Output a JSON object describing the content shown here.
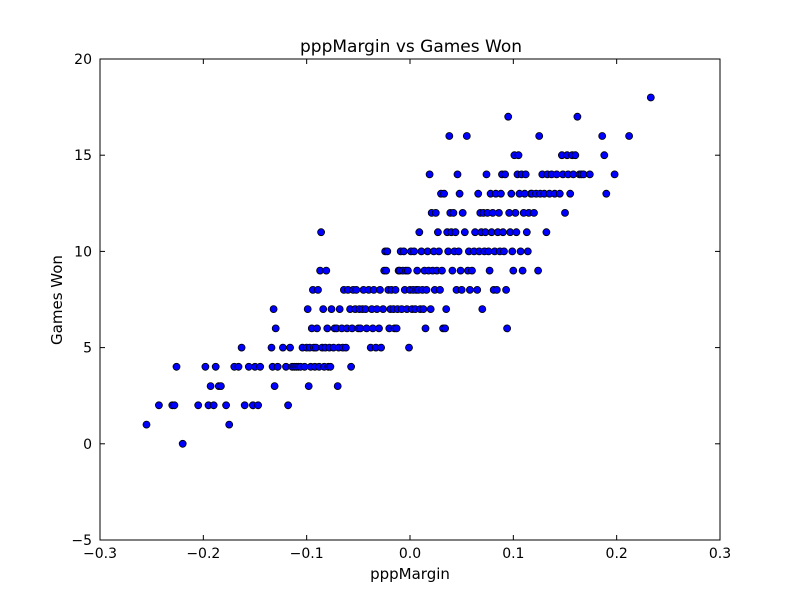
{
  "chart_data": {
    "type": "scatter",
    "title": "pppMargin vs Games Won",
    "xlabel": "pppMargin",
    "ylabel": "Games Won",
    "xlim": [
      -0.3,
      0.3
    ],
    "ylim": [
      -5,
      20
    ],
    "xticks": [
      -0.3,
      -0.2,
      -0.1,
      0.0,
      0.1,
      0.2,
      0.3
    ],
    "xtick_labels": [
      "−0.3",
      "−0.2",
      "−0.1",
      "0.0",
      "0.1",
      "0.2",
      "0.3"
    ],
    "yticks": [
      -5,
      0,
      5,
      10,
      15,
      20
    ],
    "ytick_labels": [
      "−5",
      "0",
      "5",
      "10",
      "15",
      "20"
    ],
    "grid": false,
    "marker_color": "#0000ff",
    "points": [
      [
        -0.255,
        1
      ],
      [
        -0.243,
        2
      ],
      [
        -0.23,
        2
      ],
      [
        -0.228,
        2
      ],
      [
        -0.226,
        4
      ],
      [
        -0.22,
        0
      ],
      [
        -0.205,
        2
      ],
      [
        -0.198,
        4
      ],
      [
        -0.195,
        2
      ],
      [
        -0.193,
        3
      ],
      [
        -0.19,
        2
      ],
      [
        -0.188,
        4
      ],
      [
        -0.185,
        3
      ],
      [
        -0.183,
        3
      ],
      [
        -0.178,
        2
      ],
      [
        -0.175,
        1
      ],
      [
        -0.17,
        4
      ],
      [
        -0.166,
        4
      ],
      [
        -0.163,
        5
      ],
      [
        -0.16,
        2
      ],
      [
        -0.156,
        4
      ],
      [
        -0.152,
        2
      ],
      [
        -0.15,
        4
      ],
      [
        -0.147,
        2
      ],
      [
        -0.145,
        4
      ],
      [
        -0.134,
        5
      ],
      [
        -0.133,
        4
      ],
      [
        -0.132,
        7
      ],
      [
        -0.131,
        3
      ],
      [
        -0.13,
        6
      ],
      [
        -0.128,
        4
      ],
      [
        -0.123,
        5
      ],
      [
        -0.12,
        4
      ],
      [
        -0.118,
        2
      ],
      [
        -0.116,
        5
      ],
      [
        -0.114,
        4
      ],
      [
        -0.112,
        4
      ],
      [
        -0.11,
        4
      ],
      [
        -0.108,
        4
      ],
      [
        -0.106,
        4
      ],
      [
        -0.104,
        5
      ],
      [
        -0.102,
        4
      ],
      [
        -0.1,
        5
      ],
      [
        -0.099,
        7
      ],
      [
        -0.098,
        3
      ],
      [
        -0.097,
        5
      ],
      [
        -0.096,
        4
      ],
      [
        -0.095,
        6
      ],
      [
        -0.094,
        8
      ],
      [
        -0.093,
        5
      ],
      [
        -0.092,
        4
      ],
      [
        -0.091,
        5
      ],
      [
        -0.09,
        6
      ],
      [
        -0.089,
        8
      ],
      [
        -0.088,
        4
      ],
      [
        -0.087,
        9
      ],
      [
        -0.086,
        11
      ],
      [
        -0.085,
        5
      ],
      [
        -0.084,
        7
      ],
      [
        -0.083,
        4
      ],
      [
        -0.082,
        5
      ],
      [
        -0.081,
        9
      ],
      [
        -0.08,
        6
      ],
      [
        -0.079,
        4
      ],
      [
        -0.078,
        5
      ],
      [
        -0.077,
        4
      ],
      [
        -0.076,
        7
      ],
      [
        -0.074,
        5
      ],
      [
        -0.073,
        6
      ],
      [
        -0.071,
        6
      ],
      [
        -0.07,
        3
      ],
      [
        -0.069,
        5
      ],
      [
        -0.068,
        7
      ],
      [
        -0.066,
        6
      ],
      [
        -0.065,
        5
      ],
      [
        -0.064,
        8
      ],
      [
        -0.062,
        5
      ],
      [
        -0.061,
        6
      ],
      [
        -0.06,
        8
      ],
      [
        -0.058,
        7
      ],
      [
        -0.057,
        4
      ],
      [
        -0.056,
        6
      ],
      [
        -0.055,
        8
      ],
      [
        -0.053,
        7
      ],
      [
        -0.052,
        8
      ],
      [
        -0.05,
        6
      ],
      [
        -0.049,
        7
      ],
      [
        -0.048,
        6
      ],
      [
        -0.046,
        7
      ],
      [
        -0.045,
        8
      ],
      [
        -0.043,
        7
      ],
      [
        -0.042,
        6
      ],
      [
        -0.04,
        8
      ],
      [
        -0.038,
        5
      ],
      [
        -0.037,
        7
      ],
      [
        -0.036,
        6
      ],
      [
        -0.035,
        8
      ],
      [
        -0.033,
        5
      ],
      [
        -0.032,
        7
      ],
      [
        -0.03,
        6
      ],
      [
        -0.029,
        8
      ],
      [
        -0.028,
        5
      ],
      [
        -0.026,
        7
      ],
      [
        -0.025,
        9
      ],
      [
        -0.024,
        10
      ],
      [
        -0.023,
        9
      ],
      [
        -0.022,
        10
      ],
      [
        -0.021,
        8
      ],
      [
        -0.02,
        6
      ],
      [
        -0.019,
        7
      ],
      [
        -0.018,
        8
      ],
      [
        -0.016,
        7
      ],
      [
        -0.015,
        6
      ],
      [
        -0.014,
        8
      ],
      [
        -0.013,
        6
      ],
      [
        -0.012,
        7
      ],
      [
        -0.011,
        9
      ],
      [
        -0.01,
        9
      ],
      [
        -0.009,
        10
      ],
      [
        -0.008,
        7
      ],
      [
        -0.007,
        9
      ],
      [
        -0.006,
        10
      ],
      [
        -0.005,
        8
      ],
      [
        -0.004,
        9
      ],
      [
        -0.003,
        7
      ],
      [
        -0.002,
        9
      ],
      [
        -0.001,
        5
      ],
      [
        0.0,
        8
      ],
      [
        0.001,
        10
      ],
      [
        0.002,
        7
      ],
      [
        0.003,
        8
      ],
      [
        0.004,
        10
      ],
      [
        0.005,
        7
      ],
      [
        0.006,
        8
      ],
      [
        0.007,
        9
      ],
      [
        0.008,
        8
      ],
      [
        0.009,
        11
      ],
      [
        0.01,
        7
      ],
      [
        0.011,
        10
      ],
      [
        0.012,
        8
      ],
      [
        0.013,
        7
      ],
      [
        0.014,
        9
      ],
      [
        0.015,
        6
      ],
      [
        0.016,
        8
      ],
      [
        0.017,
        10
      ],
      [
        0.018,
        9
      ],
      [
        0.019,
        14
      ],
      [
        0.02,
        7
      ],
      [
        0.021,
        12
      ],
      [
        0.022,
        9
      ],
      [
        0.023,
        10
      ],
      [
        0.024,
        8
      ],
      [
        0.025,
        12
      ],
      [
        0.026,
        9
      ],
      [
        0.027,
        11
      ],
      [
        0.028,
        10
      ],
      [
        0.029,
        8
      ],
      [
        0.03,
        13
      ],
      [
        0.031,
        9
      ],
      [
        0.032,
        6
      ],
      [
        0.033,
        13
      ],
      [
        0.034,
        6
      ],
      [
        0.035,
        7
      ],
      [
        0.036,
        11
      ],
      [
        0.037,
        10
      ],
      [
        0.038,
        16
      ],
      [
        0.039,
        12
      ],
      [
        0.04,
        11
      ],
      [
        0.041,
        9
      ],
      [
        0.042,
        12
      ],
      [
        0.043,
        10
      ],
      [
        0.044,
        11
      ],
      [
        0.045,
        8
      ],
      [
        0.046,
        14
      ],
      [
        0.047,
        10
      ],
      [
        0.048,
        13
      ],
      [
        0.049,
        9
      ],
      [
        0.05,
        8
      ],
      [
        0.051,
        12
      ],
      [
        0.053,
        11
      ],
      [
        0.055,
        16
      ],
      [
        0.056,
        9
      ],
      [
        0.057,
        10
      ],
      [
        0.058,
        8
      ],
      [
        0.06,
        9
      ],
      [
        0.062,
        10
      ],
      [
        0.063,
        11
      ],
      [
        0.065,
        8
      ],
      [
        0.066,
        13
      ],
      [
        0.067,
        10
      ],
      [
        0.068,
        12
      ],
      [
        0.069,
        11
      ],
      [
        0.07,
        7
      ],
      [
        0.071,
        12
      ],
      [
        0.072,
        10
      ],
      [
        0.073,
        11
      ],
      [
        0.074,
        14
      ],
      [
        0.075,
        12
      ],
      [
        0.076,
        10
      ],
      [
        0.077,
        9
      ],
      [
        0.078,
        13
      ],
      [
        0.079,
        11
      ],
      [
        0.08,
        12
      ],
      [
        0.081,
        8
      ],
      [
        0.082,
        10
      ],
      [
        0.083,
        13
      ],
      [
        0.084,
        8
      ],
      [
        0.085,
        11
      ],
      [
        0.086,
        12
      ],
      [
        0.087,
        10
      ],
      [
        0.088,
        13
      ],
      [
        0.089,
        14
      ],
      [
        0.09,
        11
      ],
      [
        0.091,
        10
      ],
      [
        0.092,
        14
      ],
      [
        0.093,
        8
      ],
      [
        0.094,
        6
      ],
      [
        0.095,
        17
      ],
      [
        0.096,
        12
      ],
      [
        0.097,
        11
      ],
      [
        0.098,
        13
      ],
      [
        0.099,
        10
      ],
      [
        0.1,
        9
      ],
      [
        0.101,
        15
      ],
      [
        0.102,
        12
      ],
      [
        0.103,
        11
      ],
      [
        0.104,
        14
      ],
      [
        0.105,
        15
      ],
      [
        0.106,
        13
      ],
      [
        0.107,
        10
      ],
      [
        0.108,
        14
      ],
      [
        0.109,
        9
      ],
      [
        0.11,
        12
      ],
      [
        0.111,
        13
      ],
      [
        0.112,
        14
      ],
      [
        0.113,
        11
      ],
      [
        0.114,
        10
      ],
      [
        0.115,
        12
      ],
      [
        0.117,
        13
      ],
      [
        0.118,
        13
      ],
      [
        0.12,
        12
      ],
      [
        0.122,
        13
      ],
      [
        0.124,
        9
      ],
      [
        0.125,
        16
      ],
      [
        0.126,
        13
      ],
      [
        0.128,
        14
      ],
      [
        0.13,
        13
      ],
      [
        0.132,
        11
      ],
      [
        0.133,
        14
      ],
      [
        0.135,
        13
      ],
      [
        0.137,
        14
      ],
      [
        0.14,
        13
      ],
      [
        0.142,
        14
      ],
      [
        0.145,
        13
      ],
      [
        0.147,
        15
      ],
      [
        0.148,
        14
      ],
      [
        0.15,
        12
      ],
      [
        0.152,
        15
      ],
      [
        0.153,
        14
      ],
      [
        0.155,
        13
      ],
      [
        0.157,
        15
      ],
      [
        0.158,
        14
      ],
      [
        0.16,
        15
      ],
      [
        0.162,
        17
      ],
      [
        0.164,
        14
      ],
      [
        0.166,
        14
      ],
      [
        0.168,
        14
      ],
      [
        0.174,
        14
      ],
      [
        0.186,
        16
      ],
      [
        0.188,
        15
      ],
      [
        0.19,
        13
      ],
      [
        0.198,
        14
      ],
      [
        0.212,
        16
      ],
      [
        0.233,
        18
      ]
    ]
  }
}
